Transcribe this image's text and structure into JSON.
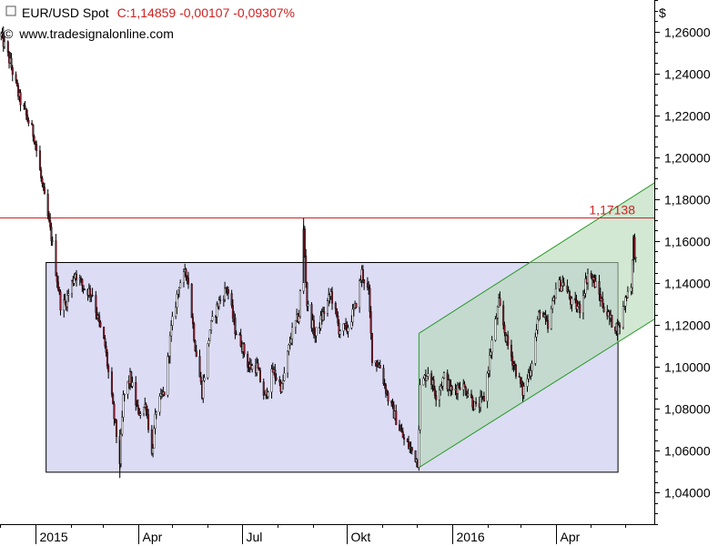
{
  "header": {
    "instrument": "EUR/USD Spot",
    "quote": "C:1,14859 -0,00107 -0,09307%",
    "source": "www.tradesignalonline.com"
  },
  "chart_data": {
    "type": "candlestick",
    "currency_label": "$",
    "ylim": [
      1.025,
      1.275
    ],
    "y_ticks": [
      {
        "value": 1.04,
        "label": "1,04000"
      },
      {
        "value": 1.06,
        "label": "1,06000"
      },
      {
        "value": 1.08,
        "label": "1,08000"
      },
      {
        "value": 1.1,
        "label": "1,10000"
      },
      {
        "value": 1.12,
        "label": "1,12000"
      },
      {
        "value": 1.14,
        "label": "1,14000"
      },
      {
        "value": 1.16,
        "label": "1,16000"
      },
      {
        "value": 1.18,
        "label": "1,18000"
      },
      {
        "value": 1.2,
        "label": "1,20000"
      },
      {
        "value": 1.22,
        "label": "1,22000"
      },
      {
        "value": 1.24,
        "label": "1,24000"
      },
      {
        "value": 1.26,
        "label": "1,26000"
      }
    ],
    "x_ticks": [
      {
        "date": "2015-01-01",
        "label": "2015"
      },
      {
        "date": "2015-04-01",
        "label": "Apr"
      },
      {
        "date": "2015-07-01",
        "label": "Jul"
      },
      {
        "date": "2015-10-01",
        "label": "Okt"
      },
      {
        "date": "2016-01-01",
        "label": "2016"
      },
      {
        "date": "2016-04-01",
        "label": "Apr"
      }
    ],
    "x_range": [
      "2014-12-01",
      "2016-06-27"
    ],
    "horizontal_line": {
      "value": 1.17138,
      "label": "1,17138",
      "color": "#cc2222"
    },
    "range_box": {
      "start": "2015-01-10",
      "end": "2016-05-25",
      "low": 1.05,
      "high": 1.15,
      "color": "#dcdcf5"
    },
    "channel": {
      "start": "2015-12-03",
      "end": "2016-06-27",
      "upper": [
        1.116,
        1.188
      ],
      "lower": [
        1.052,
        1.123
      ],
      "color": "#c8e3c8"
    },
    "price_path": [
      [
        "2014-12-02",
        1.258
      ],
      [
        "2014-12-10",
        1.245
      ],
      [
        "2014-12-18",
        1.228
      ],
      [
        "2014-12-31",
        1.21
      ],
      [
        "2015-01-08",
        1.183
      ],
      [
        "2015-01-15",
        1.162
      ],
      [
        "2015-01-23",
        1.13
      ],
      [
        "2015-01-27",
        1.13
      ],
      [
        "2015-02-05",
        1.145
      ],
      [
        "2015-02-12",
        1.138
      ],
      [
        "2015-02-20",
        1.135
      ],
      [
        "2015-02-26",
        1.12
      ],
      [
        "2015-03-03",
        1.11
      ],
      [
        "2015-03-10",
        1.08
      ],
      [
        "2015-03-16",
        1.055
      ],
      [
        "2015-03-19",
        1.085
      ],
      [
        "2015-03-25",
        1.095
      ],
      [
        "2015-04-01",
        1.078
      ],
      [
        "2015-04-08",
        1.082
      ],
      [
        "2015-04-13",
        1.058
      ],
      [
        "2015-04-17",
        1.08
      ],
      [
        "2015-04-24",
        1.088
      ],
      [
        "2015-04-30",
        1.118
      ],
      [
        "2015-05-07",
        1.14
      ],
      [
        "2015-05-14",
        1.145
      ],
      [
        "2015-05-21",
        1.11
      ],
      [
        "2015-05-27",
        1.088
      ],
      [
        "2015-06-03",
        1.118
      ],
      [
        "2015-06-10",
        1.13
      ],
      [
        "2015-06-18",
        1.138
      ],
      [
        "2015-06-25",
        1.118
      ],
      [
        "2015-06-30",
        1.112
      ],
      [
        "2015-07-07",
        1.1
      ],
      [
        "2015-07-14",
        1.1
      ],
      [
        "2015-07-21",
        1.085
      ],
      [
        "2015-07-28",
        1.098
      ],
      [
        "2015-08-05",
        1.09
      ],
      [
        "2015-08-13",
        1.115
      ],
      [
        "2015-08-20",
        1.125
      ],
      [
        "2015-08-24",
        1.165
      ],
      [
        "2015-08-27",
        1.13
      ],
      [
        "2015-09-03",
        1.115
      ],
      [
        "2015-09-10",
        1.125
      ],
      [
        "2015-09-17",
        1.135
      ],
      [
        "2015-09-24",
        1.118
      ],
      [
        "2015-10-01",
        1.118
      ],
      [
        "2015-10-08",
        1.128
      ],
      [
        "2015-10-14",
        1.145
      ],
      [
        "2015-10-20",
        1.135
      ],
      [
        "2015-10-23",
        1.105
      ],
      [
        "2015-10-30",
        1.1
      ],
      [
        "2015-11-06",
        1.085
      ],
      [
        "2015-11-13",
        1.075
      ],
      [
        "2015-11-20",
        1.065
      ],
      [
        "2015-11-27",
        1.06
      ],
      [
        "2015-12-02",
        1.055
      ],
      [
        "2015-12-04",
        1.09
      ],
      [
        "2015-12-11",
        1.098
      ],
      [
        "2015-12-18",
        1.087
      ],
      [
        "2015-12-25",
        1.095
      ],
      [
        "2016-01-01",
        1.088
      ],
      [
        "2016-01-08",
        1.092
      ],
      [
        "2016-01-15",
        1.088
      ],
      [
        "2016-01-22",
        1.08
      ],
      [
        "2016-01-29",
        1.085
      ],
      [
        "2016-02-05",
        1.112
      ],
      [
        "2016-02-11",
        1.13
      ],
      [
        "2016-02-18",
        1.112
      ],
      [
        "2016-02-25",
        1.1
      ],
      [
        "2016-03-03",
        1.088
      ],
      [
        "2016-03-10",
        1.1
      ],
      [
        "2016-03-18",
        1.128
      ],
      [
        "2016-03-25",
        1.118
      ],
      [
        "2016-04-01",
        1.138
      ],
      [
        "2016-04-08",
        1.14
      ],
      [
        "2016-04-15",
        1.13
      ],
      [
        "2016-04-22",
        1.128
      ],
      [
        "2016-04-29",
        1.145
      ],
      [
        "2016-05-05",
        1.14
      ],
      [
        "2016-05-12",
        1.13
      ],
      [
        "2016-05-19",
        1.122
      ],
      [
        "2016-05-26",
        1.118
      ],
      [
        "2016-06-02",
        1.135
      ],
      [
        "2016-06-06",
        1.14
      ],
      [
        "2016-06-08",
        1.16
      ],
      [
        "2016-06-10",
        1.15
      ],
      [
        "2016-06-13",
        1.14859
      ]
    ],
    "candle_colors": {
      "up": "#ffffff",
      "down": "#8b1a2a",
      "wick": "#000000"
    }
  }
}
